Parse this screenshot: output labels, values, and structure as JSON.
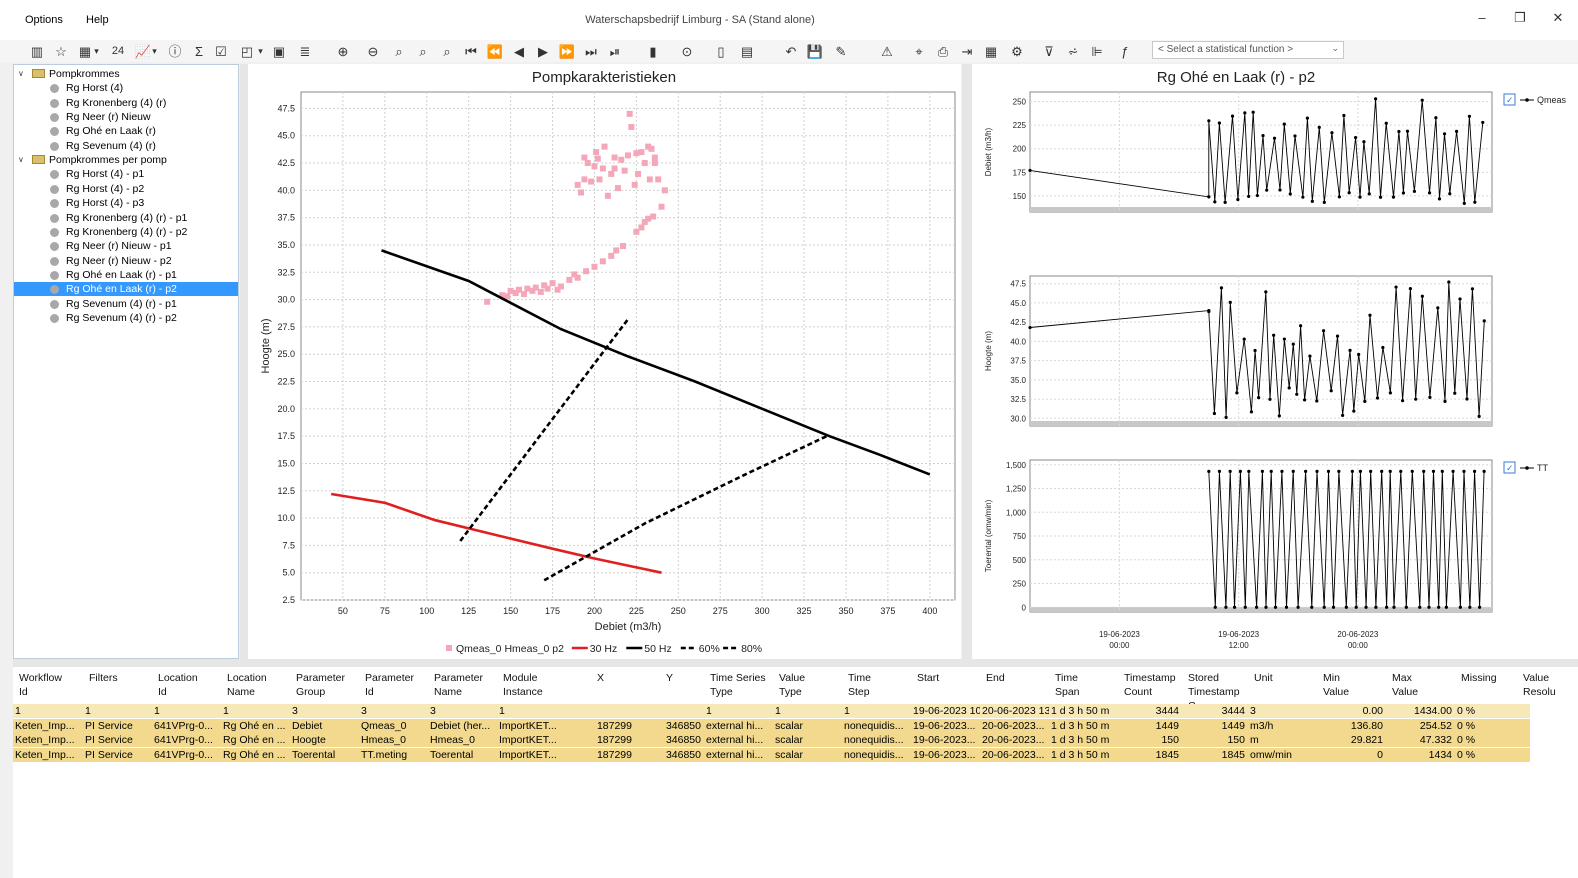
{
  "window": {
    "title": "Waterschapsbedrijf Limburg - SA  (Stand alone)",
    "min": "–",
    "restore": "❐",
    "close": "✕"
  },
  "menu": {
    "options": "Options",
    "help": "Help"
  },
  "toolbar": {
    "time_step_value": "24",
    "stat_function_placeholder": "< Select a statistical function >"
  },
  "tree": [
    {
      "label": "Pompkrommes",
      "type": "folder",
      "level": 0
    },
    {
      "label": "Rg Horst (4)",
      "type": "item",
      "level": 1
    },
    {
      "label": "Rg Kronenberg (4) (r)",
      "type": "item",
      "level": 1
    },
    {
      "label": "Rg Neer (r) Nieuw",
      "type": "item",
      "level": 1
    },
    {
      "label": "Rg Ohé en Laak (r)",
      "type": "item",
      "level": 1
    },
    {
      "label": "Rg Sevenum (4) (r)",
      "type": "item",
      "level": 1
    },
    {
      "label": "Pompkrommes per pomp",
      "type": "folder",
      "level": 0
    },
    {
      "label": "Rg Horst (4) - p1",
      "type": "item",
      "level": 1
    },
    {
      "label": "Rg Horst (4) - p2",
      "type": "item",
      "level": 1
    },
    {
      "label": "Rg Horst (4) - p3",
      "type": "item",
      "level": 1
    },
    {
      "label": "Rg Kronenberg (4) (r) - p1",
      "type": "item",
      "level": 1
    },
    {
      "label": "Rg Kronenberg (4) (r) - p2",
      "type": "item",
      "level": 1
    },
    {
      "label": "Rg Neer (r) Nieuw - p1",
      "type": "item",
      "level": 1
    },
    {
      "label": "Rg Neer (r) Nieuw - p2",
      "type": "item",
      "level": 1
    },
    {
      "label": "Rg Ohé en Laak (r) - p1",
      "type": "item",
      "level": 1
    },
    {
      "label": "Rg Ohé en Laak (r) - p2",
      "type": "item",
      "level": 1,
      "selected": true
    },
    {
      "label": "Rg Sevenum (4) (r) - p1",
      "type": "item",
      "level": 1
    },
    {
      "label": "Rg Sevenum (4) (r) - p2",
      "type": "item",
      "level": 1
    }
  ],
  "chart_data": [
    {
      "type": "scatter",
      "title": "Pompkarakteristieken",
      "xlabel": "Debiet (m3/h)",
      "ylabel": "Hoogte (m)",
      "xlim": [
        25,
        415
      ],
      "ylim": [
        2.5,
        49
      ],
      "xticks": [
        50,
        75,
        100,
        125,
        150,
        175,
        200,
        225,
        250,
        275,
        300,
        325,
        350,
        375,
        400
      ],
      "yticks": [
        2.5,
        5.0,
        7.5,
        10.0,
        12.5,
        15.0,
        17.5,
        20.0,
        22.5,
        25.0,
        27.5,
        30.0,
        32.5,
        35.0,
        37.5,
        40.0,
        42.5,
        45.0,
        47.5
      ],
      "grid": true,
      "legend_position": "bottom",
      "series": [
        {
          "name": "Qmeas_0 Hmeas_0 p2",
          "kind": "points",
          "color": "#f4a7b9",
          "points": [
            [
              136,
              29.8
            ],
            [
              145,
              30.4
            ],
            [
              148,
              30.3
            ],
            [
              150,
              30.8
            ],
            [
              153,
              30.6
            ],
            [
              155,
              30.9
            ],
            [
              158,
              30.5
            ],
            [
              160,
              31.0
            ],
            [
              163,
              30.8
            ],
            [
              165,
              31.1
            ],
            [
              168,
              30.7
            ],
            [
              170,
              31.3
            ],
            [
              172,
              31.0
            ],
            [
              175,
              31.5
            ],
            [
              178,
              30.9
            ],
            [
              180,
              31.2
            ],
            [
              185,
              31.8
            ],
            [
              188,
              32.3
            ],
            [
              190,
              32.0
            ],
            [
              195,
              32.6
            ],
            [
              200,
              33.0
            ],
            [
              205,
              33.5
            ],
            [
              210,
              34.0
            ],
            [
              213,
              34.5
            ],
            [
              217,
              34.9
            ],
            [
              225,
              36.2
            ],
            [
              228,
              36.6
            ],
            [
              230,
              37.1
            ],
            [
              232,
              37.4
            ],
            [
              235,
              37.6
            ],
            [
              240,
              38.5
            ],
            [
              242,
              40.0
            ],
            [
              238,
              41.0
            ],
            [
              236,
              42.5
            ],
            [
              234,
              43.8
            ],
            [
              232,
              44.0
            ],
            [
              230,
              42.5
            ],
            [
              228,
              43.5
            ],
            [
              226,
              41.5
            ],
            [
              224,
              40.5
            ],
            [
              222,
              45.8
            ],
            [
              221,
              47.0
            ],
            [
              220,
              43.2
            ],
            [
              218,
              41.8
            ],
            [
              216,
              42.8
            ],
            [
              214,
              40.2
            ],
            [
              212,
              43.0
            ],
            [
              210,
              41.5
            ],
            [
              208,
              39.5
            ],
            [
              206,
              44.0
            ],
            [
              205,
              42.0
            ],
            [
              203,
              41.0
            ],
            [
              201,
              43.5
            ],
            [
              200,
              42.2
            ],
            [
              198,
              40.8
            ],
            [
              196,
              42.5
            ],
            [
              194,
              41.0
            ],
            [
              192,
              39.8
            ],
            [
              190,
              40.5
            ],
            [
              194,
              43.0
            ],
            [
              202,
              42.9
            ],
            [
              233,
              41.0
            ],
            [
              236,
              43.0
            ],
            [
              225,
              43.4
            ],
            [
              212,
              42.0
            ]
          ]
        },
        {
          "name": "30 Hz",
          "kind": "line",
          "color": "#e02020",
          "dash": "",
          "points": [
            [
              43,
              12.2
            ],
            [
              75,
              11.4
            ],
            [
              105,
              9.8
            ],
            [
              140,
              8.5
            ],
            [
              175,
              7.2
            ],
            [
              200,
              6.3
            ],
            [
              240,
              5.0
            ]
          ]
        },
        {
          "name": "50 Hz",
          "kind": "line",
          "color": "#000000",
          "dash": "",
          "points": [
            [
              73,
              34.5
            ],
            [
              125,
              31.7
            ],
            [
              180,
              27.3
            ],
            [
              220,
              24.8
            ],
            [
              260,
              22.5
            ],
            [
              300,
              20.0
            ],
            [
              340,
              17.5
            ],
            [
              370,
              15.8
            ],
            [
              400,
              14.0
            ]
          ]
        },
        {
          "name": "60%",
          "kind": "line",
          "color": "#000000",
          "dash": "5,3",
          "points": [
            [
              120,
              7.9
            ],
            [
              220,
              28.2
            ]
          ]
        },
        {
          "name": "80%",
          "kind": "line",
          "color": "#000000",
          "dash": "5,3",
          "points": [
            [
              170,
              4.3
            ],
            [
              230,
              9.5
            ],
            [
              290,
              14.0
            ],
            [
              340,
              17.6
            ]
          ]
        }
      ]
    },
    {
      "type": "line",
      "title": "Rg Ohé en Laak (r) - p2",
      "panels": [
        {
          "ylabel": "Debiet (m3/h)",
          "yticks": [
            150,
            175,
            200,
            225,
            250
          ],
          "ylim": [
            133,
            260
          ],
          "legend": "Qmeas"
        },
        {
          "ylabel": "Hoogte (m)",
          "yticks": [
            30.0,
            32.5,
            35.0,
            37.5,
            40.0,
            42.5,
            45.0,
            47.5
          ],
          "ylim": [
            29,
            48.5
          ],
          "legend": ""
        },
        {
          "ylabel": "Toerental (omw/min)",
          "yticks": [
            0,
            250,
            500,
            750,
            1000,
            1250,
            1500
          ],
          "yticklabels": [
            "0",
            "250",
            "500",
            "750",
            "1,000",
            "1,250",
            "1,500"
          ],
          "ylim": [
            -50,
            1550
          ],
          "legend": "TT"
        }
      ],
      "xticks": [
        "19-06-2023\n00:00",
        "19-06-2023\n12:00",
        "20-06-2023\n00:00"
      ],
      "xlim_hours": [
        -9,
        37.5
      ],
      "series_shape": {
        "flat_start_hour": -9,
        "flat_end_hour": 9,
        "active_start_hour": 9,
        "active_end_hour": 37
      }
    }
  ],
  "grid": {
    "headers": [
      "Workflow\nId",
      "Filters",
      "Location\nId",
      "Location\nName",
      "Parameter\nGroup",
      "Parameter\nId",
      "Parameter\nName",
      "Module\nInstance",
      "X",
      "Y",
      "Time Series\nType",
      "Value\nType",
      "Time\nStep",
      "Start",
      "End",
      "Time\nSpan",
      "Timestamp\nCount",
      "Stored\nTimestamp C",
      "Unit",
      "Min\nValue",
      "Max\nValue",
      "Missing",
      "Value\nResolu"
    ],
    "rows": [
      [
        "1",
        "1",
        "1",
        "1",
        "3",
        "3",
        "3",
        "1",
        "",
        "",
        "1",
        "1",
        "1",
        "19-06-2023 10",
        "20-06-2023 13",
        "1 d 3 h 50 m",
        "3444",
        "3444",
        "3",
        "0.00",
        "1434.00",
        "0 %",
        ""
      ],
      [
        "Keten_Imp...",
        "PI Service",
        "641VPrg-0...",
        "Rg Ohé en ...",
        "Debiet",
        "Qmeas_0",
        "Debiet (her...",
        "ImportKET...",
        "187299",
        "346850",
        "external hi...",
        "scalar",
        "nonequidis...",
        "19-06-2023...",
        "20-06-2023...",
        "1 d 3 h 50 m",
        "1449",
        "1449",
        "m3/h",
        "136.80",
        "254.52",
        "0 %",
        ""
      ],
      [
        "Keten_Imp...",
        "PI Service",
        "641VPrg-0...",
        "Rg Ohé en ...",
        "Hoogte",
        "Hmeas_0",
        "Hmeas_0",
        "ImportKET...",
        "187299",
        "346850",
        "external hi...",
        "scalar",
        "nonequidis...",
        "19-06-2023...",
        "20-06-2023...",
        "1 d 3 h 50 m",
        "150",
        "150",
        "m",
        "29.821",
        "47.332",
        "0 %",
        ""
      ],
      [
        "Keten_Imp...",
        "PI Service",
        "641VPrg-0...",
        "Rg Ohé en ...",
        "Toerental",
        "TT.meting",
        "Toerental",
        "ImportKET...",
        "187299",
        "346850",
        "external hi...",
        "scalar",
        "nonequidis...",
        "19-06-2023...",
        "20-06-2023...",
        "1 d 3 h 50 m",
        "1845",
        "1845",
        "omw/min",
        "0",
        "1434",
        "0 %",
        ""
      ]
    ]
  }
}
